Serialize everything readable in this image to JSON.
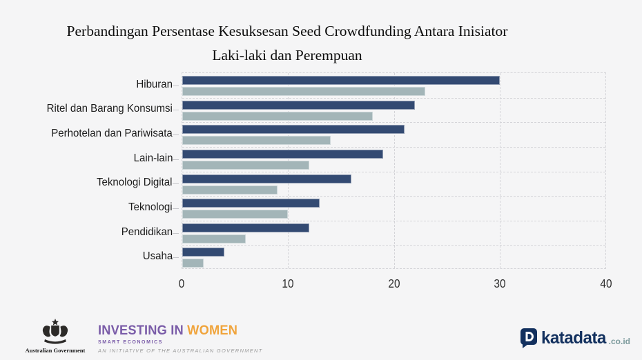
{
  "title": {
    "line1": "Perbandingan Persentase Kesuksesan Seed Crowdfunding Antara Inisiator",
    "line2": "Laki-laki dan Perempuan"
  },
  "chart_data": {
    "type": "bar",
    "orientation": "horizontal",
    "title": "Perbandingan Persentase Kesuksesan Seed Crowdfunding Antara Inisiator Laki-laki dan Perempuan",
    "categories": [
      "Hiburan",
      "Ritel dan Barang Konsumsi",
      "Perhotelan dan Pariwisata",
      "Lain-lain",
      "Teknologi Digital",
      "Teknologi",
      "Pendidikan",
      "Usaha"
    ],
    "series": [
      {
        "name": "series-dark-blue",
        "color": "#334a72",
        "values": [
          30,
          22,
          21,
          19,
          16,
          13,
          12,
          4
        ]
      },
      {
        "name": "series-light-gray",
        "color": "#a3b5b8",
        "values": [
          23,
          18,
          14,
          12,
          9,
          10,
          6,
          2
        ]
      }
    ],
    "xlabel": "",
    "ylabel": "",
    "xlim": [
      0,
      40
    ],
    "x_ticks": [
      "0",
      "10",
      "20",
      "30",
      "40"
    ],
    "grid": "dashed",
    "legend": "none"
  },
  "colors": {
    "background": "#f5f5f6",
    "gridline": "#d4d4d8",
    "bar_dark": "#334a72",
    "bar_light": "#a3b5b8",
    "iw_purple": "#7a5ca8",
    "iw_orange": "#f0a43c",
    "katadata_navy": "#12305e",
    "katadata_teal": "#7d9b9d"
  },
  "footer": {
    "australian_government": "Australian Government",
    "investing_in": "INVESTING IN ",
    "women": "WOMEN",
    "smart_economics": "SMART ECONOMICS",
    "initiative": "AN INITIATIVE OF THE AUSTRALIAN GOVERNMENT",
    "katadata_name": "katadata",
    "katadata_tld": ".co.id"
  }
}
